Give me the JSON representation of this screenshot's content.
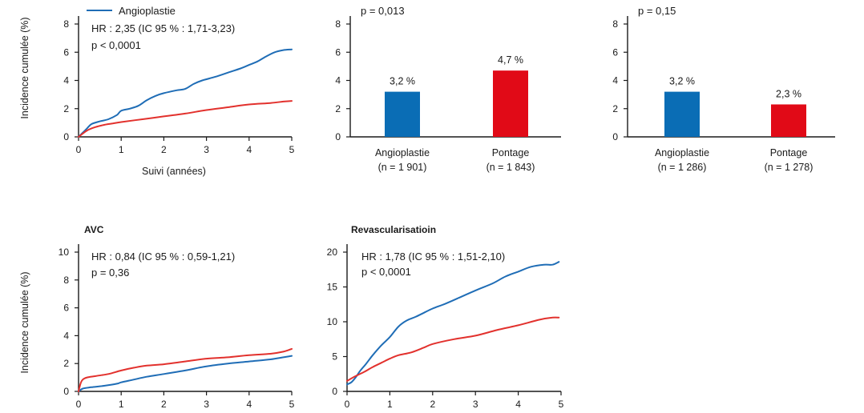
{
  "colors": {
    "blue": "#1f6db6",
    "red": "#e2312d",
    "bar_blue": "#0a6db5",
    "bar_red": "#e10a17",
    "axis": "#1a1a1a"
  },
  "legend": {
    "angioplastie": "Angioplastie"
  },
  "chart_data": [
    {
      "type": "line",
      "title": "",
      "ylabel": "Incidence cumulée (%)",
      "xlabel": "Suivi (années)",
      "xlim": [
        0,
        5
      ],
      "ylim": [
        0,
        8
      ],
      "xticks": [
        "0",
        "1",
        "2",
        "3",
        "4",
        "5"
      ],
      "yticks": [
        "0",
        "2",
        "4",
        "6",
        "8"
      ],
      "annotations": [
        "HR : 2,35 (IC 95 % : 1,71-3,23)",
        "p < 0,0001"
      ],
      "grid": false,
      "series": [
        {
          "name": "Angioplastie",
          "color": "#1f6db6",
          "x": [
            0,
            0.1,
            0.2,
            0.3,
            0.5,
            0.7,
            0.9,
            1.0,
            1.2,
            1.4,
            1.6,
            1.8,
            2.0,
            2.3,
            2.5,
            2.7,
            2.9,
            3.2,
            3.5,
            3.8,
            4.0,
            4.2,
            4.4,
            4.6,
            4.8,
            5.0
          ],
          "y": [
            0,
            0.3,
            0.6,
            0.9,
            1.1,
            1.25,
            1.55,
            1.85,
            2.0,
            2.2,
            2.6,
            2.9,
            3.1,
            3.3,
            3.4,
            3.75,
            4.0,
            4.25,
            4.55,
            4.85,
            5.1,
            5.35,
            5.7,
            6.0,
            6.15,
            6.2
          ]
        },
        {
          "name": "",
          "color": "#e2312d",
          "x": [
            0,
            0.2,
            0.4,
            0.6,
            0.8,
            1.0,
            1.5,
            2.0,
            2.5,
            3.0,
            3.5,
            4.0,
            4.5,
            4.8,
            5.0
          ],
          "y": [
            0,
            0.45,
            0.7,
            0.85,
            0.95,
            1.05,
            1.25,
            1.45,
            1.65,
            1.9,
            2.1,
            2.3,
            2.4,
            2.5,
            2.55
          ]
        }
      ]
    },
    {
      "type": "bar",
      "ylim": [
        0,
        8
      ],
      "yticks": [
        "0",
        "2",
        "4",
        "6",
        "8"
      ],
      "annotations": [
        "p = 0,013"
      ],
      "categories": [
        "Angioplastie",
        "Pontage"
      ],
      "n_labels": [
        "(n = 1 901)",
        "(n = 1 843)"
      ],
      "values": [
        3.2,
        4.7
      ],
      "value_labels": [
        "3,2 %",
        "4,7 %"
      ],
      "colors": [
        "#0a6db5",
        "#e10a17"
      ]
    },
    {
      "type": "bar",
      "ylim": [
        0,
        8
      ],
      "yticks": [
        "0",
        "2",
        "4",
        "6",
        "8"
      ],
      "annotations": [
        "p = 0,15"
      ],
      "categories": [
        "Angioplastie",
        "Pontage"
      ],
      "n_labels": [
        "(n = 1 286)",
        "(n = 1 278)"
      ],
      "values": [
        3.2,
        2.3
      ],
      "value_labels": [
        "3,2 %",
        "2,3 %"
      ],
      "colors": [
        "#0a6db5",
        "#e10a17"
      ]
    },
    {
      "type": "line",
      "title": "AVC",
      "ylabel": "Incidence cumulée (%)",
      "xlim": [
        0,
        5
      ],
      "ylim": [
        0,
        10
      ],
      "xticks": [
        "0",
        "1",
        "2",
        "3",
        "4",
        "5"
      ],
      "yticks": [
        "0",
        "2",
        "4",
        "6",
        "8",
        "10"
      ],
      "annotations": [
        "HR : 0,84 (IC 95 % : 0,59-1,21)",
        "p = 0,36"
      ],
      "grid": false,
      "series": [
        {
          "name": "",
          "color": "#1f6db6",
          "x": [
            0,
            0.1,
            0.3,
            0.6,
            0.9,
            1.0,
            1.3,
            1.6,
            2.0,
            2.5,
            3.0,
            3.5,
            4.0,
            4.5,
            4.8,
            5.0
          ],
          "y": [
            0,
            0.2,
            0.3,
            0.4,
            0.55,
            0.65,
            0.85,
            1.05,
            1.25,
            1.5,
            1.8,
            2.0,
            2.15,
            2.3,
            2.45,
            2.55
          ]
        },
        {
          "name": "",
          "color": "#e2312d",
          "x": [
            0,
            0.05,
            0.1,
            0.2,
            0.4,
            0.7,
            1.0,
            1.3,
            1.6,
            2.0,
            2.5,
            3.0,
            3.5,
            4.0,
            4.5,
            4.8,
            5.0
          ],
          "y": [
            0,
            0.6,
            0.85,
            1.0,
            1.1,
            1.25,
            1.5,
            1.7,
            1.85,
            1.95,
            2.15,
            2.35,
            2.45,
            2.6,
            2.7,
            2.85,
            3.05
          ]
        }
      ]
    },
    {
      "type": "line",
      "title": "Revascularisatioin",
      "xlim": [
        0,
        5
      ],
      "ylim": [
        0,
        20
      ],
      "xticks": [
        "0",
        "1",
        "2",
        "3",
        "4",
        "5"
      ],
      "yticks": [
        "0",
        "5",
        "10",
        "15",
        "20"
      ],
      "annotations": [
        "HR : 1,78 (IC 95 % : 1,51-2,10)",
        "p < 0,0001"
      ],
      "grid": false,
      "series": [
        {
          "name": "",
          "color": "#1f6db6",
          "x": [
            0,
            0.1,
            0.2,
            0.3,
            0.45,
            0.6,
            0.8,
            1.0,
            1.2,
            1.4,
            1.6,
            1.8,
            2.0,
            2.3,
            2.6,
            3.0,
            3.4,
            3.7,
            4.0,
            4.3,
            4.6,
            4.8,
            4.95
          ],
          "y": [
            1,
            1.3,
            2.0,
            2.9,
            4.0,
            5.2,
            6.6,
            7.8,
            9.3,
            10.2,
            10.7,
            11.3,
            11.9,
            12.6,
            13.4,
            14.5,
            15.5,
            16.5,
            17.2,
            17.9,
            18.2,
            18.2,
            18.6
          ]
        },
        {
          "name": "",
          "color": "#e2312d",
          "x": [
            0,
            0.2,
            0.4,
            0.6,
            0.8,
            1.0,
            1.2,
            1.5,
            1.8,
            2.0,
            2.5,
            3.0,
            3.5,
            4.0,
            4.5,
            4.8,
            4.95
          ],
          "y": [
            1.5,
            2.2,
            2.8,
            3.5,
            4.1,
            4.7,
            5.2,
            5.6,
            6.3,
            6.8,
            7.5,
            8.0,
            8.8,
            9.5,
            10.3,
            10.6,
            10.6
          ]
        }
      ]
    }
  ]
}
